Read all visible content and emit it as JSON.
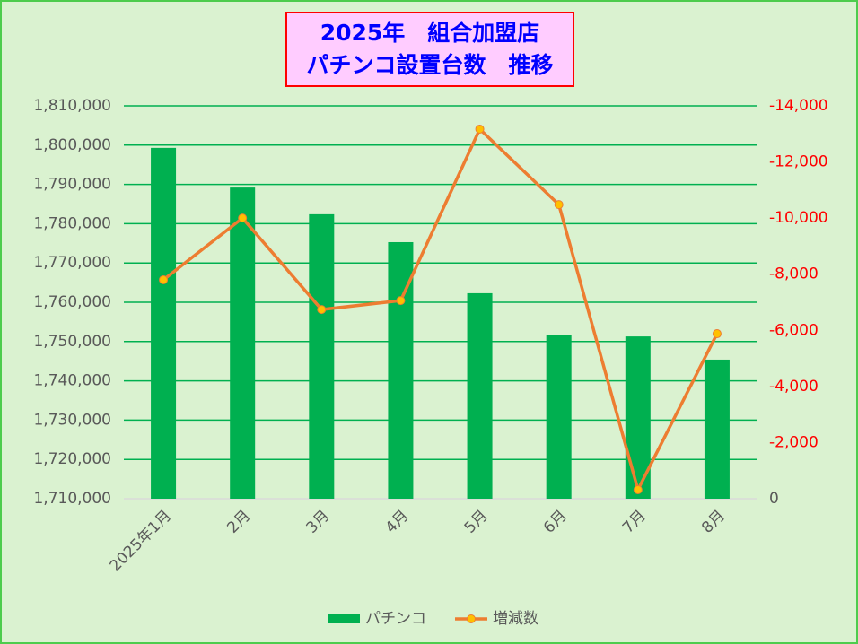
{
  "chart_data": {
    "type": "combo",
    "title": [
      "2025年　組合加盟店",
      "パチンコ設置台数　推移"
    ],
    "categories": [
      "2025年1月",
      "2月",
      "3月",
      "4月",
      "5月",
      "6月",
      "7月",
      "8月"
    ],
    "series": [
      {
        "name": "パチンコ",
        "type": "bar",
        "color": "#00b050",
        "values": [
          1799300,
          1789200,
          1782400,
          1775300,
          1762300,
          1751600,
          1751300,
          1745400
        ]
      },
      {
        "name": "増減数",
        "type": "line",
        "axis": "y2",
        "color": "#ed7d31",
        "marker_color": "#ffc000",
        "values": [
          -7800,
          -10000,
          -6740,
          -7060,
          -13170,
          -10480,
          -320,
          -5880
        ]
      }
    ],
    "ylim": [
      1710000,
      1810000
    ],
    "yticks": [
      {
        "value": 1710000,
        "label": "1,710,000"
      },
      {
        "value": 1720000,
        "label": "1,720,000"
      },
      {
        "value": 1730000,
        "label": "1,730,000"
      },
      {
        "value": 1740000,
        "label": "1,740,000"
      },
      {
        "value": 1750000,
        "label": "1,750,000"
      },
      {
        "value": 1760000,
        "label": "1,760,000"
      },
      {
        "value": 1770000,
        "label": "1,770,000"
      },
      {
        "value": 1780000,
        "label": "1,780,000"
      },
      {
        "value": 1790000,
        "label": "1,790,000"
      },
      {
        "value": 1800000,
        "label": "1,800,000"
      },
      {
        "value": 1810000,
        "label": "1,810,000"
      }
    ],
    "y2lim": [
      0,
      -14000
    ],
    "y2ticks": [
      0,
      {
        "value": -2000,
        "label": "-2,000"
      },
      {
        "value": -4000,
        "label": "-4,000"
      },
      {
        "value": -6000,
        "label": "-6,000"
      },
      {
        "value": -8000,
        "label": "-8,000"
      },
      {
        "value": -10000,
        "label": "-10,000"
      },
      {
        "value": -12000,
        "label": "-12,000"
      },
      {
        "value": -14000,
        "label": "-14,000"
      }
    ],
    "grid": true,
    "grid_color": "#00b050",
    "y2_label_color": "#ff0000",
    "legend": "bottom"
  }
}
